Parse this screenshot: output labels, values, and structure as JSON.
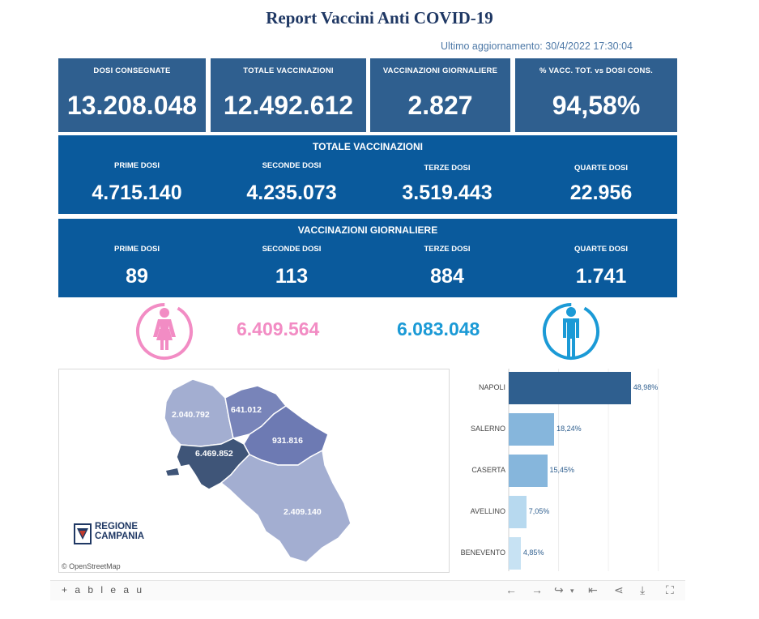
{
  "header": {
    "title": "Report Vaccini Anti COVID-19",
    "updated": "Ultimo aggiornamento: 30/4/2022 17:30:04"
  },
  "kpis": [
    {
      "label": "DOSI  CONSEGNATE",
      "value": "13.208.048"
    },
    {
      "label": "TOTALE VACCINAZIONI",
      "value": "12.492.612"
    },
    {
      "label": "VACCINAZIONI GIORNALIERE",
      "value": "2.827"
    },
    {
      "label": "% VACC. TOT. vs DOSI CONS.",
      "value": "94,58%"
    }
  ],
  "totale": {
    "title": "TOTALE VACCINAZIONI",
    "cells": [
      {
        "label": "PRIME DOSI",
        "value": "4.715.140"
      },
      {
        "label": "SECONDE DOSI",
        "value": "4.235.073"
      },
      {
        "label": "TERZE DOSI",
        "value": "3.519.443"
      },
      {
        "label": "QUARTE DOSI",
        "value": "22.956"
      }
    ]
  },
  "giornaliere": {
    "title": "VACCINAZIONI GIORNALIERE",
    "cells": [
      {
        "label": "PRIME DOSI",
        "value": "89"
      },
      {
        "label": "SECONDE DOSI",
        "value": "113"
      },
      {
        "label": "TERZE DOSI",
        "value": "884"
      },
      {
        "label": "QUARTE DOSI",
        "value": "1.741"
      }
    ]
  },
  "gender": {
    "female": "6.409.564",
    "male": "6.083.048",
    "female_color": "#f28cc4",
    "male_color": "#1b9ad6"
  },
  "map": {
    "labels": [
      "2.040.792",
      "641.012",
      "931.816",
      "6.469.852",
      "2.409.140"
    ],
    "logo_line1": "REGIONE",
    "logo_line2": "CAMPANIA",
    "attribution": "© OpenStreetMap"
  },
  "chart_data": {
    "type": "bar",
    "orientation": "horizontal",
    "categories": [
      "NAPOLI",
      "SALERNO",
      "CASERTA",
      "AVELLINO",
      "BENEVENTO"
    ],
    "values": [
      48.98,
      18.24,
      15.45,
      7.05,
      4.85
    ],
    "labels": [
      "48,98%",
      "18,24%",
      "15,45%",
      "7,05%",
      "4,85%"
    ],
    "colors": [
      "#2f5f8f",
      "#86b6dc",
      "#86b6dc",
      "#b7d9ef",
      "#c7e2f3"
    ],
    "xlim": [
      0,
      65
    ]
  },
  "toolbar": {
    "logo": "+ a b l e a u"
  }
}
